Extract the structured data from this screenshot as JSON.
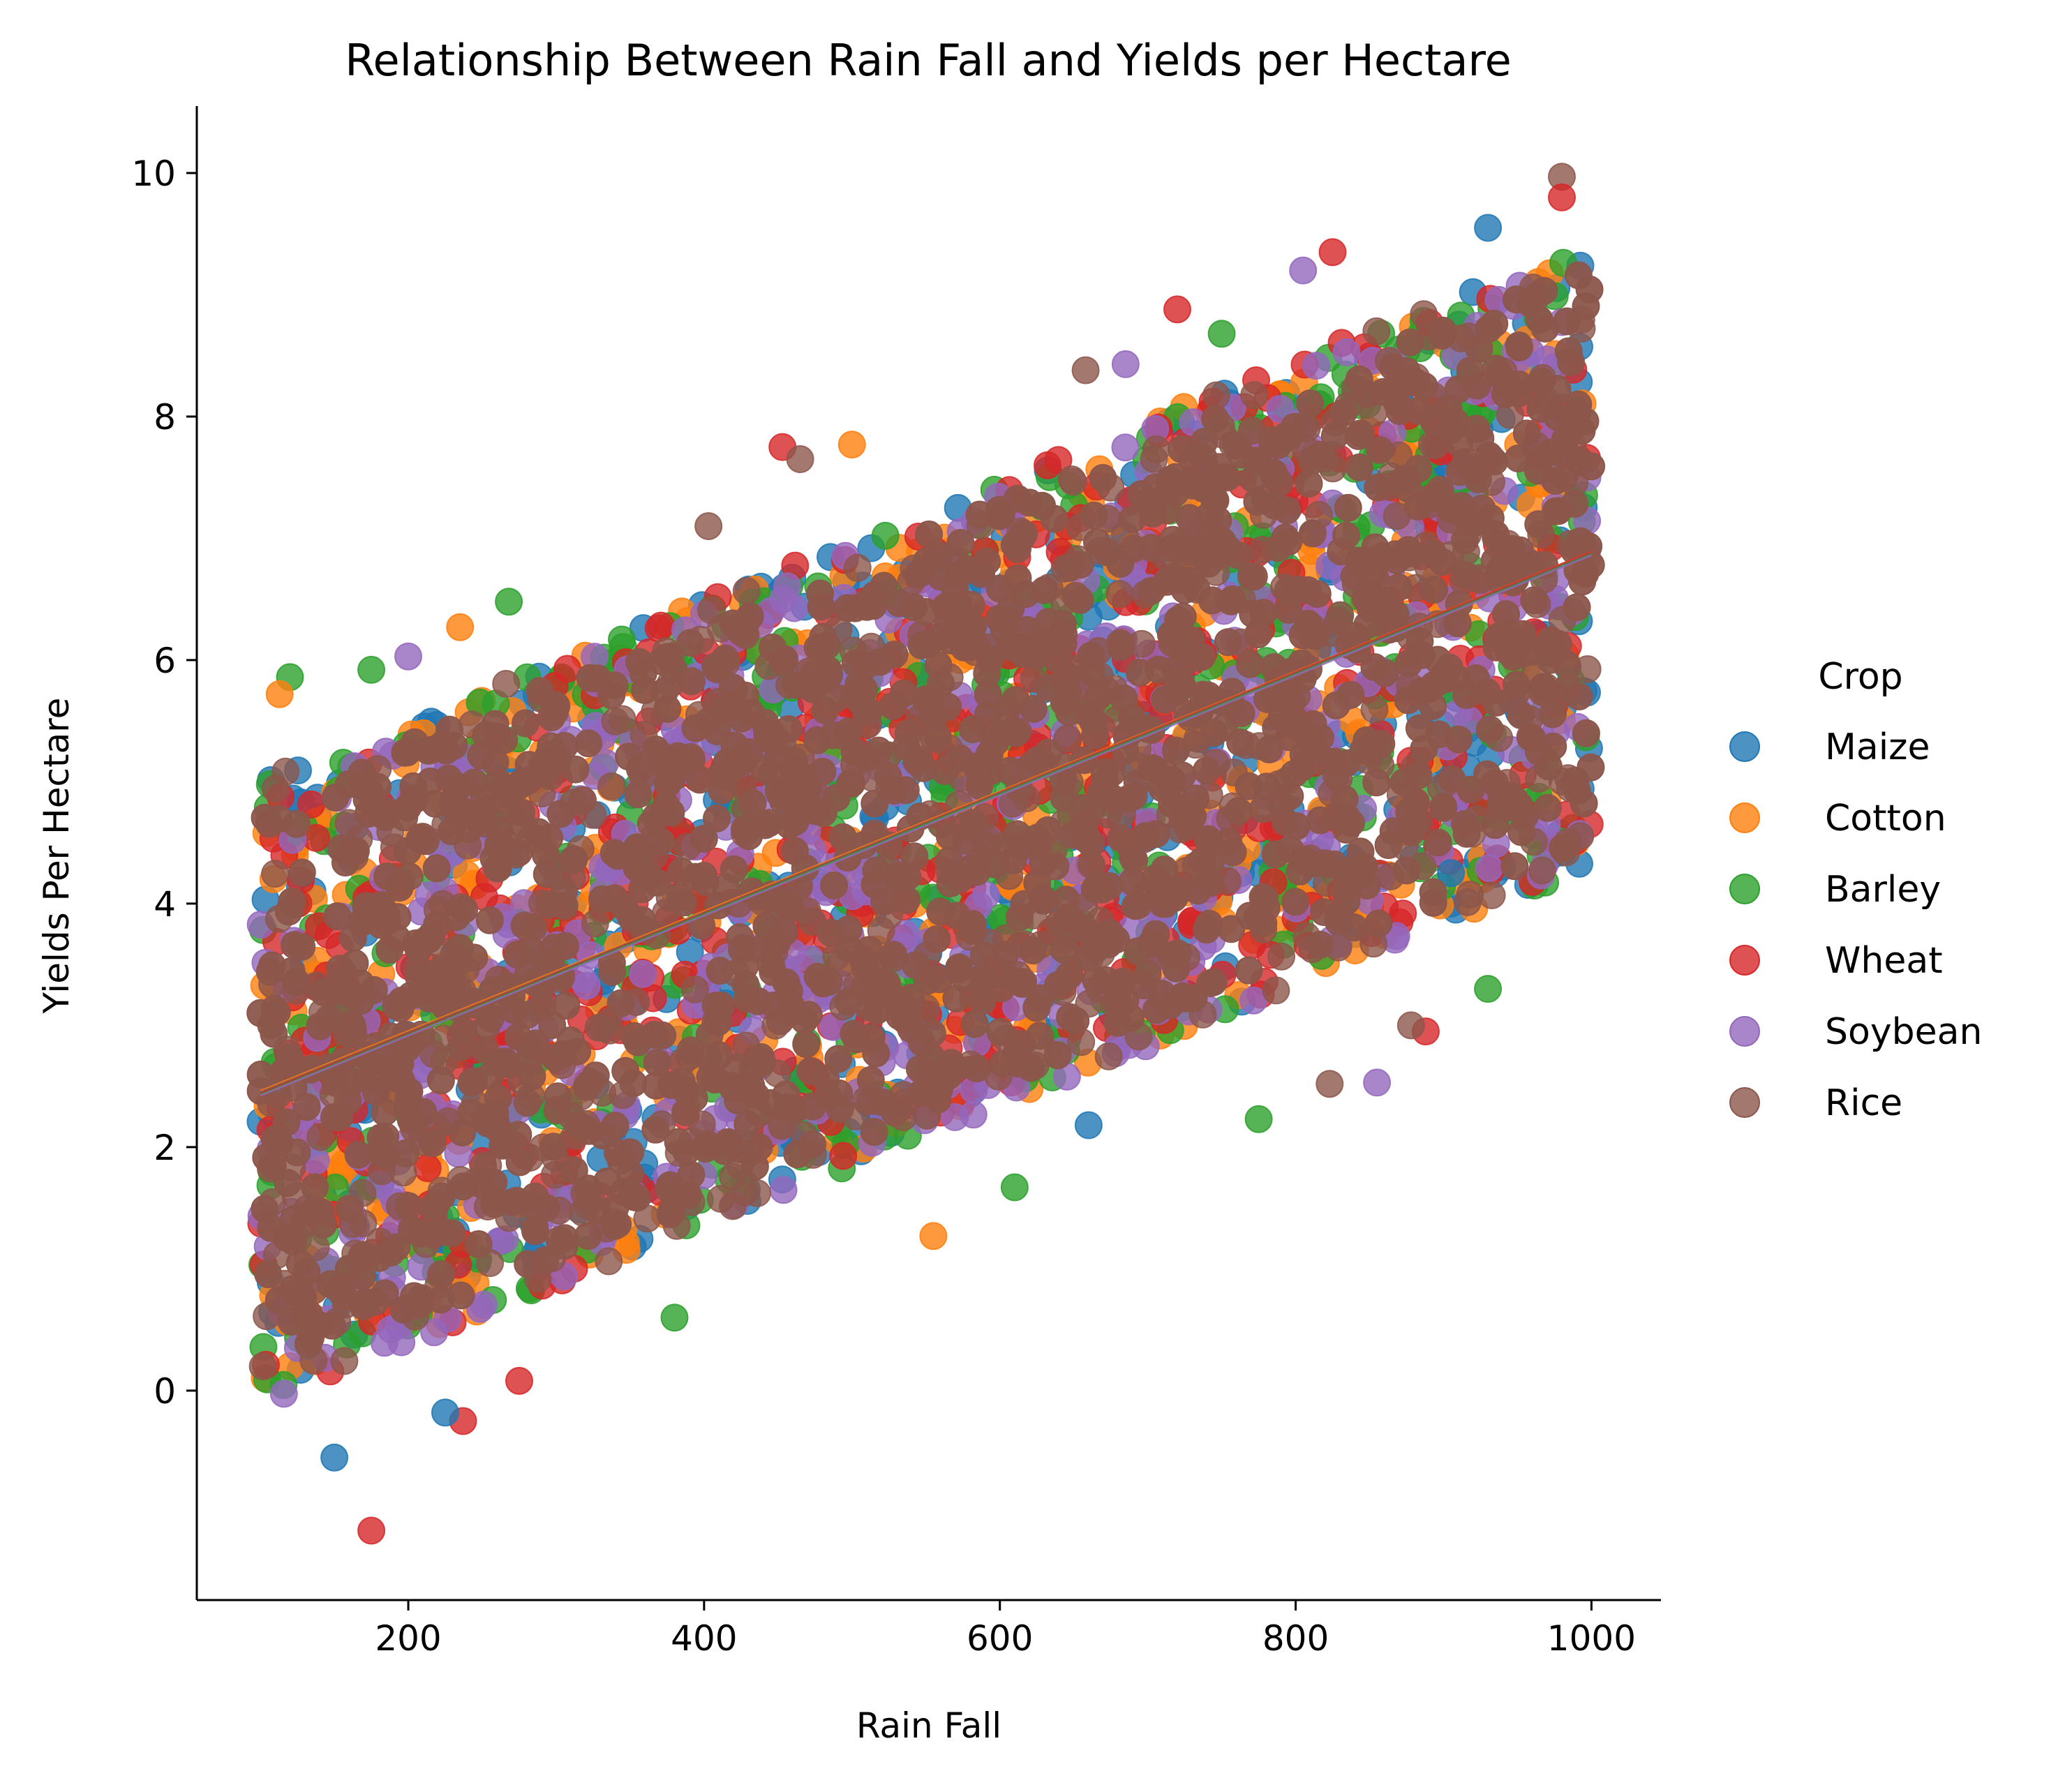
{
  "chart_data": {
    "type": "scatter",
    "title": "Relationship Between Rain Fall and Yields per Hectare",
    "xlabel": "Rain Fall",
    "ylabel": "Yields Per Hectare",
    "xlim": [
      57,
      1047
    ],
    "ylim": [
      -1.72,
      10.55
    ],
    "xticks": [
      200,
      400,
      600,
      800,
      1000
    ],
    "yticks": [
      0,
      2,
      4,
      6,
      8,
      10
    ],
    "grid": false,
    "legend": {
      "title": "Crop",
      "placement": "right-outside",
      "entries": [
        "Maize",
        "Cotton",
        "Barley",
        "Wheat",
        "Soybean",
        "Rice"
      ]
    },
    "series": [
      {
        "name": "Maize",
        "color": "#1f77b4",
        "x_range": [
          100,
          1000
        ],
        "trend": {
          "slope": 0.00493,
          "intercept": 1.95
        },
        "band_halfwidth": 2.55
      },
      {
        "name": "Cotton",
        "color": "#ff7f0e",
        "x_range": [
          100,
          1000
        ],
        "trend": {
          "slope": 0.00492,
          "intercept": 1.97
        },
        "band_halfwidth": 2.55
      },
      {
        "name": "Barley",
        "color": "#2ca02c",
        "x_range": [
          100,
          1000
        ],
        "trend": {
          "slope": 0.00493,
          "intercept": 1.94
        },
        "band_halfwidth": 2.55
      },
      {
        "name": "Wheat",
        "color": "#d62728",
        "x_range": [
          100,
          1000
        ],
        "trend": {
          "slope": 0.00494,
          "intercept": 1.95
        },
        "band_halfwidth": 2.55
      },
      {
        "name": "Soybean",
        "color": "#9467bd",
        "x_range": [
          100,
          1000
        ],
        "trend": {
          "slope": 0.00493,
          "intercept": 1.93
        },
        "band_halfwidth": 2.55
      },
      {
        "name": "Rice",
        "color": "#8c564b",
        "x_range": [
          100,
          1000
        ],
        "trend": {
          "slope": 0.00492,
          "intercept": 1.96
        },
        "band_halfwidth": 2.55
      }
    ],
    "outliers": [
      {
        "series": "Rice",
        "x": 980,
        "y": 9.97
      },
      {
        "series": "Wheat",
        "x": 980,
        "y": 9.8
      },
      {
        "series": "Wheat",
        "x": 720,
        "y": 8.88
      },
      {
        "series": "Wheat",
        "x": 453,
        "y": 7.75
      },
      {
        "series": "Rice",
        "x": 465,
        "y": 7.65
      },
      {
        "series": "Cotton",
        "x": 500,
        "y": 7.77
      },
      {
        "series": "Barley",
        "x": 120,
        "y": 5.86
      },
      {
        "series": "Cotton",
        "x": 113,
        "y": 5.72
      },
      {
        "series": "Barley",
        "x": 175,
        "y": 5.92
      },
      {
        "series": "Wheat",
        "x": 175,
        "y": -1.15
      },
      {
        "series": "Maize",
        "x": 150,
        "y": -0.55
      },
      {
        "series": "Wheat",
        "x": 237,
        "y": -0.25
      },
      {
        "series": "Maize",
        "x": 225,
        "y": -0.18
      },
      {
        "series": "Wheat",
        "x": 275,
        "y": 0.08
      },
      {
        "series": "Barley",
        "x": 380,
        "y": 0.6
      },
      {
        "series": "Cotton",
        "x": 555,
        "y": 1.27
      },
      {
        "series": "Barley",
        "x": 610,
        "y": 1.67
      },
      {
        "series": "Barley",
        "x": 775,
        "y": 2.23
      },
      {
        "series": "Rice",
        "x": 823,
        "y": 2.52
      },
      {
        "series": "Soybean",
        "x": 855,
        "y": 2.53
      },
      {
        "series": "Barley",
        "x": 930,
        "y": 3.3
      },
      {
        "series": "Maize",
        "x": 660,
        "y": 2.18
      },
      {
        "series": "Barley",
        "x": 750,
        "y": 8.68
      },
      {
        "series": "Soybean",
        "x": 685,
        "y": 8.43
      },
      {
        "series": "Rice",
        "x": 658,
        "y": 8.38
      },
      {
        "series": "Wheat",
        "x": 825,
        "y": 9.35
      },
      {
        "series": "Maize",
        "x": 930,
        "y": 9.55
      },
      {
        "series": "Soybean",
        "x": 805,
        "y": 9.2
      },
      {
        "series": "Cotton",
        "x": 235,
        "y": 6.27
      },
      {
        "series": "Barley",
        "x": 268,
        "y": 6.48
      },
      {
        "series": "Rice",
        "x": 403,
        "y": 7.1
      },
      {
        "series": "Maize",
        "x": 905,
        "y": 4.25
      },
      {
        "series": "Wheat",
        "x": 888,
        "y": 2.95
      },
      {
        "series": "Rice",
        "x": 878,
        "y": 3.0
      },
      {
        "series": "Soybean",
        "x": 200,
        "y": 6.03
      }
    ]
  }
}
